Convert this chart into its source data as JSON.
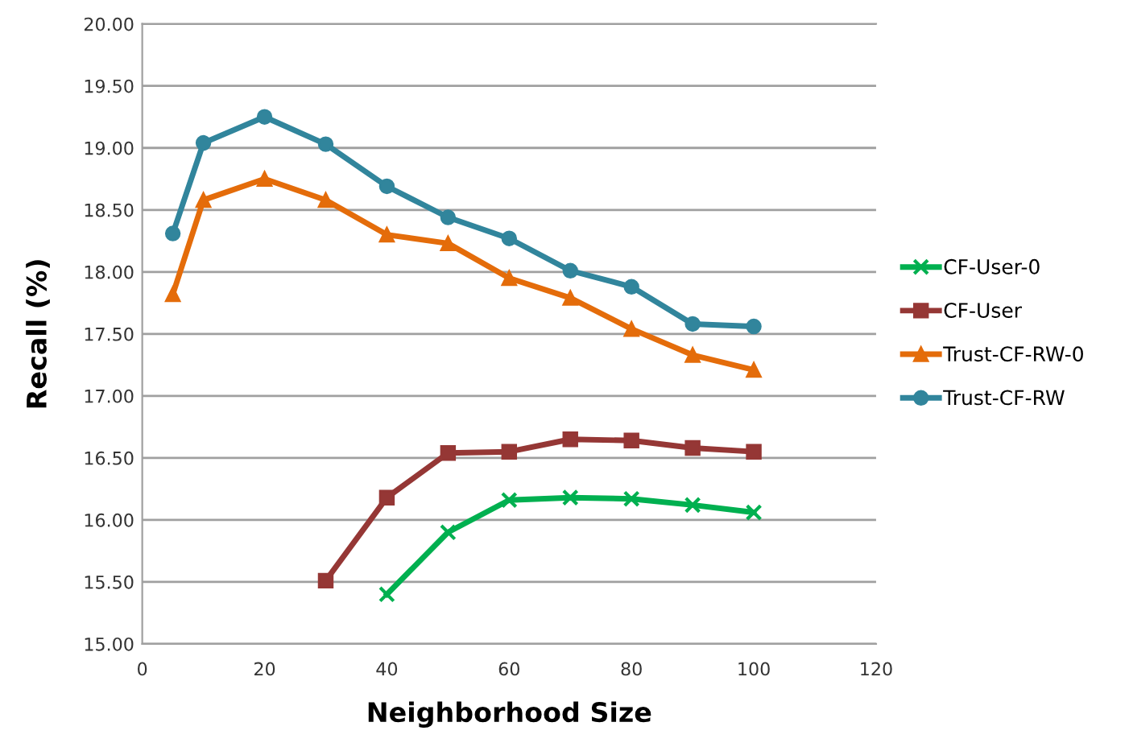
{
  "chart_data": {
    "type": "line",
    "xlabel": "Neighborhood Size",
    "ylabel": "Recall (%)",
    "x": [
      5,
      10,
      20,
      30,
      40,
      50,
      60,
      70,
      80,
      90,
      100
    ],
    "series": [
      {
        "name": "CF-User-0",
        "color": "#00b050",
        "marker": "cross",
        "values": [
          null,
          null,
          null,
          null,
          15.4,
          15.9,
          16.16,
          16.18,
          16.17,
          16.12,
          16.06
        ]
      },
      {
        "name": "CF-User",
        "color": "#953735",
        "marker": "square",
        "values": [
          null,
          null,
          null,
          15.51,
          16.18,
          16.54,
          16.55,
          16.65,
          16.64,
          16.58,
          16.55
        ]
      },
      {
        "name": "Trust-CF-RW-0",
        "color": "#e46c0a",
        "marker": "triangle",
        "values": [
          17.82,
          18.58,
          18.75,
          18.58,
          18.3,
          18.23,
          17.95,
          17.79,
          17.54,
          17.33,
          17.21
        ]
      },
      {
        "name": "Trust-CF-RW",
        "color": "#31859c",
        "marker": "circle",
        "values": [
          18.31,
          19.04,
          19.25,
          19.03,
          18.69,
          18.44,
          18.27,
          18.01,
          17.88,
          17.58,
          17.56
        ]
      }
    ],
    "xlim": [
      0,
      120
    ],
    "xticks": [
      0,
      20,
      40,
      60,
      80,
      100,
      120
    ],
    "ylim": [
      15,
      20
    ],
    "yticks": [
      {
        "value": 15,
        "label": "15.00"
      },
      {
        "value": 15.5,
        "label": "15.50"
      },
      {
        "value": 16,
        "label": "16.00"
      },
      {
        "value": 16.5,
        "label": "16.50"
      },
      {
        "value": 17,
        "label": "17.00"
      },
      {
        "value": 17.5,
        "label": "17.50"
      },
      {
        "value": 18,
        "label": "18.00"
      },
      {
        "value": 18.5,
        "label": "18.50"
      },
      {
        "value": 19,
        "label": "19.00"
      },
      {
        "value": 19.5,
        "label": "19.50"
      },
      {
        "value": 20,
        "label": "20.00"
      }
    ],
    "grid": "y",
    "legend": "right",
    "line_style": "solid"
  }
}
